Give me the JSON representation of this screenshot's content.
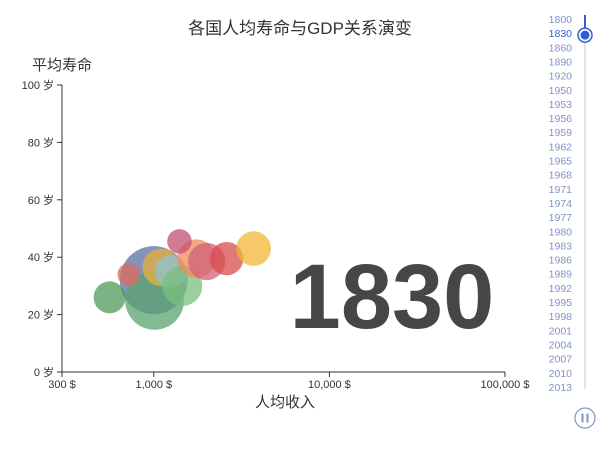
{
  "chart_data": {
    "type": "scatter",
    "title": "各国人均寿命与GDP关系演变",
    "xlabel": "人均收入",
    "ylabel": "平均寿命",
    "x_scale": "log",
    "xlim": [
      300,
      100000
    ],
    "ylim": [
      0,
      100
    ],
    "x_ticks": [
      "300 $",
      "1,000 $",
      "10,000 $",
      "100,000 $"
    ],
    "y_ticks": [
      "0 岁",
      "20 岁",
      "40 岁",
      "60 岁",
      "80 岁",
      "100 岁"
    ],
    "current_year": "1830",
    "timeline": {
      "years": [
        "1800",
        "1830",
        "1860",
        "1890",
        "1920",
        "1950",
        "1953",
        "1956",
        "1959",
        "1962",
        "1965",
        "1968",
        "1971",
        "1974",
        "1977",
        "1980",
        "1983",
        "1986",
        "1989",
        "1992",
        "1995",
        "1998",
        "2001",
        "2004",
        "2007",
        "2010",
        "2013"
      ],
      "selected": "1830",
      "playing": true
    },
    "points": [
      {
        "x": 1000,
        "y": 32,
        "size": 1.0,
        "color": "#5a6fa8"
      },
      {
        "x": 1010,
        "y": 25,
        "size": 0.75,
        "color": "#5aa36f"
      },
      {
        "x": 1100,
        "y": 36.5,
        "size": 0.3,
        "color": "#e6b23a"
      },
      {
        "x": 1250,
        "y": 35,
        "size": 0.22,
        "color": "#8fc3d6"
      },
      {
        "x": 1450,
        "y": 30,
        "size": 0.35,
        "color": "#7bbf7e"
      },
      {
        "x": 1750,
        "y": 39.5,
        "size": 0.32,
        "color": "#ef8d55"
      },
      {
        "x": 2000,
        "y": 38.5,
        "size": 0.3,
        "color": "#d25f7a"
      },
      {
        "x": 2600,
        "y": 39.5,
        "size": 0.24,
        "color": "#d94b4b"
      },
      {
        "x": 3700,
        "y": 43,
        "size": 0.26,
        "color": "#f2b635"
      },
      {
        "x": 1400,
        "y": 45.5,
        "size": 0.13,
        "color": "#c24f70"
      },
      {
        "x": 720,
        "y": 34,
        "size": 0.11,
        "color": "#dc6b5b"
      },
      {
        "x": 560,
        "y": 26,
        "size": 0.22,
        "color": "#4f9a5c"
      }
    ]
  }
}
